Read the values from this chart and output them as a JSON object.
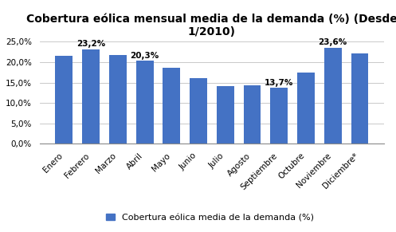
{
  "title": "Cobertura eólica mensual media de la demanda (%) (Desde\n1/2010)",
  "categories": [
    "Enero",
    "Febrero",
    "Marzo",
    "Abril",
    "Mayo",
    "Junio",
    "Julio",
    "Agosto",
    "Septiembre",
    "Octubre",
    "Noviembre",
    "Diciembre*"
  ],
  "values": [
    21.5,
    23.2,
    21.8,
    20.3,
    18.7,
    16.0,
    14.1,
    14.3,
    13.7,
    17.5,
    23.6,
    22.2
  ],
  "bar_color": "#4472C4",
  "annotations": {
    "1": "23,2%",
    "3": "20,3%",
    "8": "13,7%",
    "10": "23,6%"
  },
  "legend_label": "Cobertura eólica media de la demanda (%)",
  "ylim": [
    0,
    25
  ],
  "yticks": [
    0,
    5,
    10,
    15,
    20,
    25
  ],
  "yticklabels": [
    "0,0%",
    "5,0%",
    "10,0%",
    "15,0%",
    "20,0%",
    "25,0%"
  ],
  "background_color": "#FFFFFF",
  "grid_color": "#C0C0C0",
  "title_fontsize": 10,
  "tick_fontsize": 7.5,
  "legend_fontsize": 8,
  "annotation_fontsize": 7.5,
  "bar_width": 0.65
}
